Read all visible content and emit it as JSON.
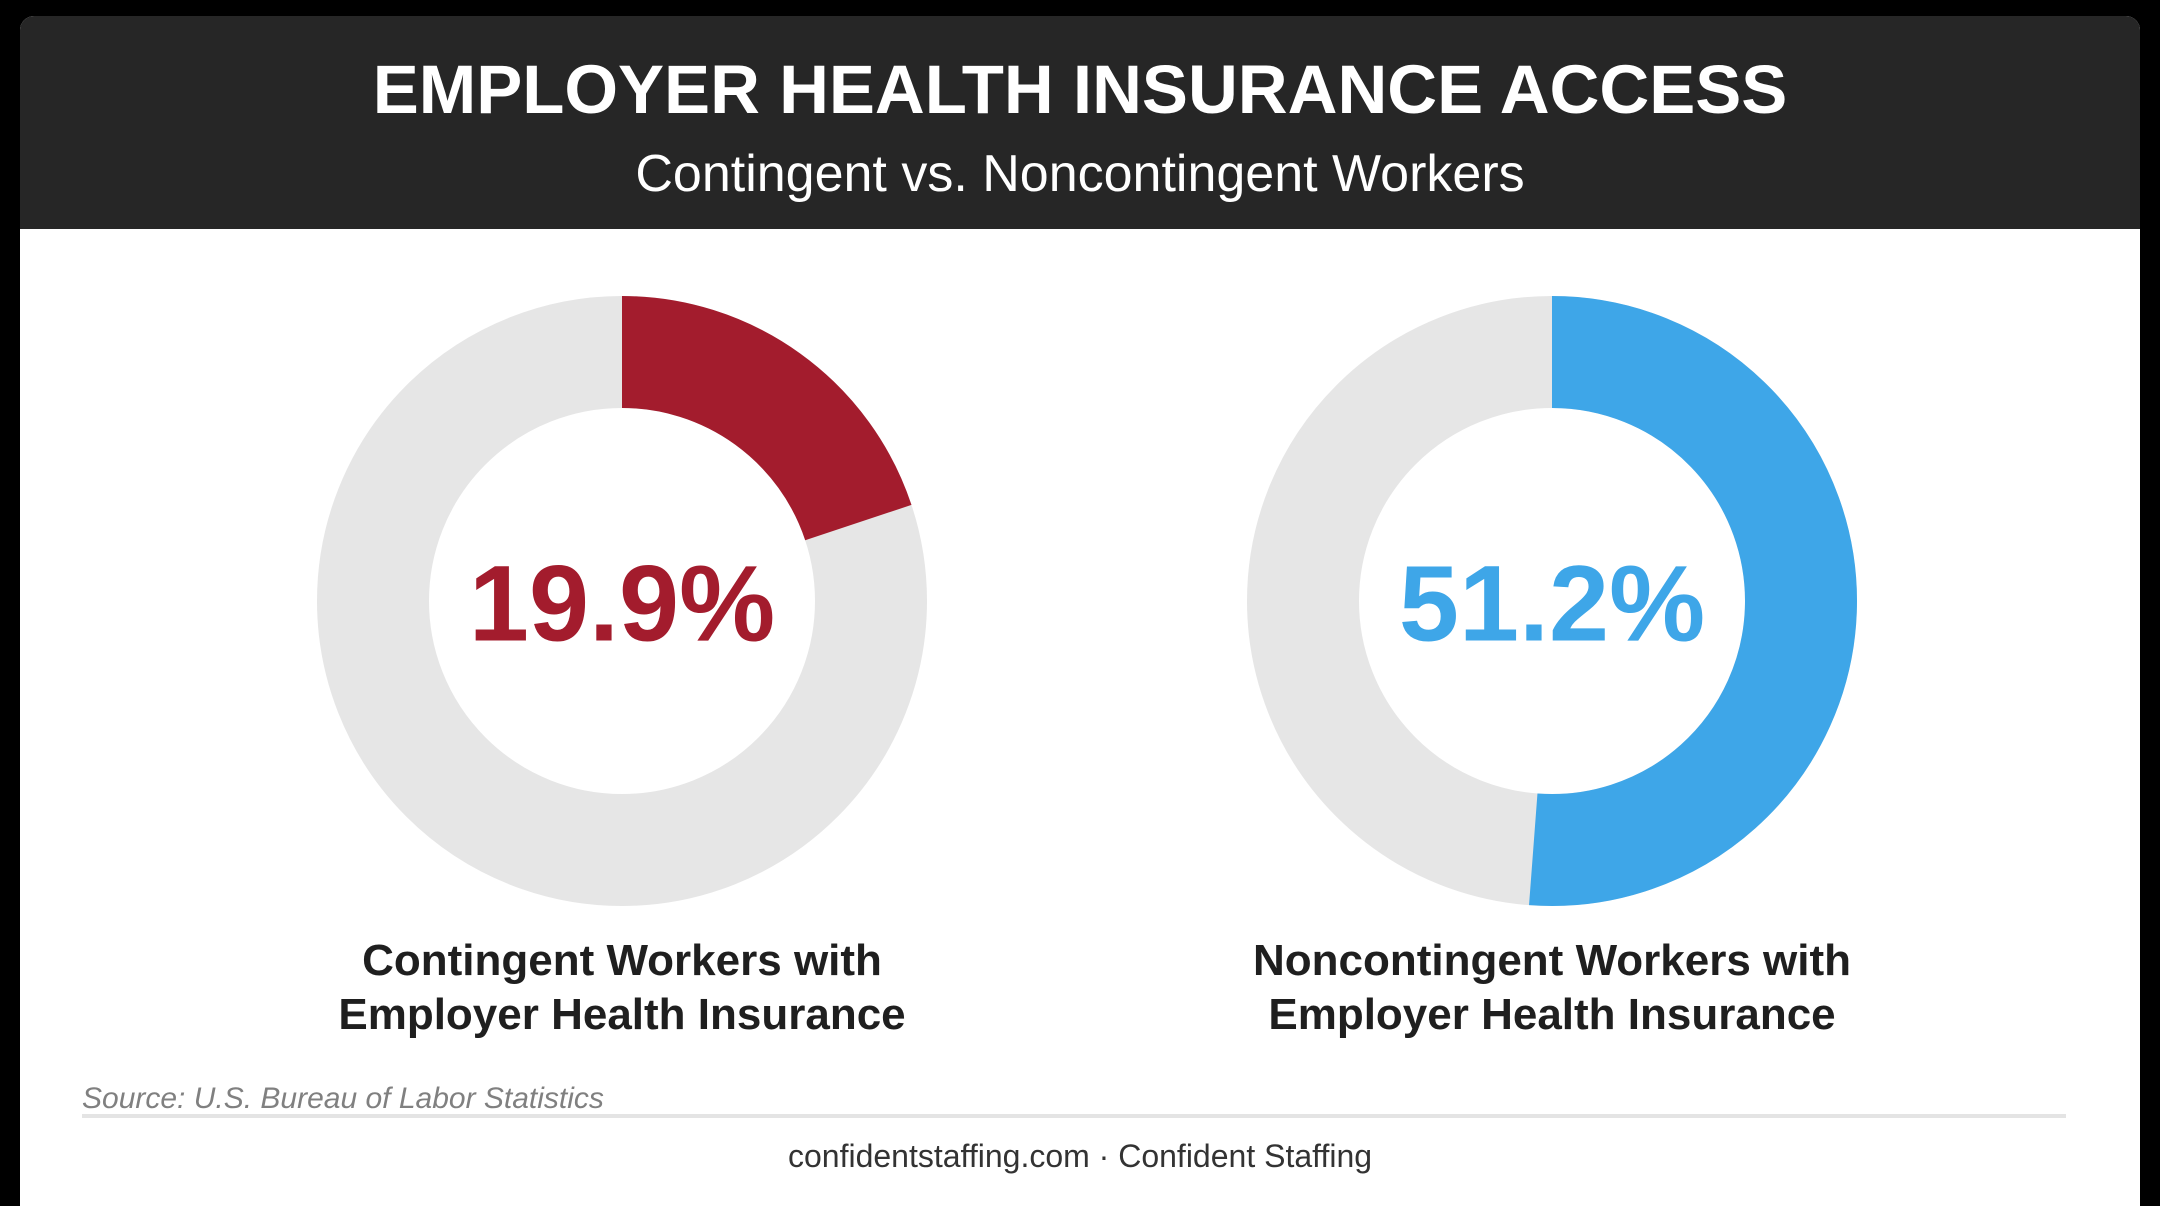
{
  "header": {
    "title": "EMPLOYER HEALTH INSURANCE ACCESS",
    "subtitle": "Contingent vs. Noncontingent Workers"
  },
  "chart_data": [
    {
      "type": "pie",
      "value": 19.9,
      "value_label": "19.9%",
      "caption_line1": "Contingent Workers with",
      "caption_line2": "Employer Health Insurance",
      "color": "#a31c2d",
      "track_color": "#e6e6e6"
    },
    {
      "type": "pie",
      "value": 51.2,
      "value_label": "51.2%",
      "caption_line1": "Noncontingent Workers with",
      "caption_line2": "Employer Health Insurance",
      "color": "#3ea6e8",
      "track_color": "#e6e6e6"
    }
  ],
  "source": "Source: U.S. Bureau of Labor Statistics",
  "footer": "confidentstaffing.com · Confident Staffing"
}
